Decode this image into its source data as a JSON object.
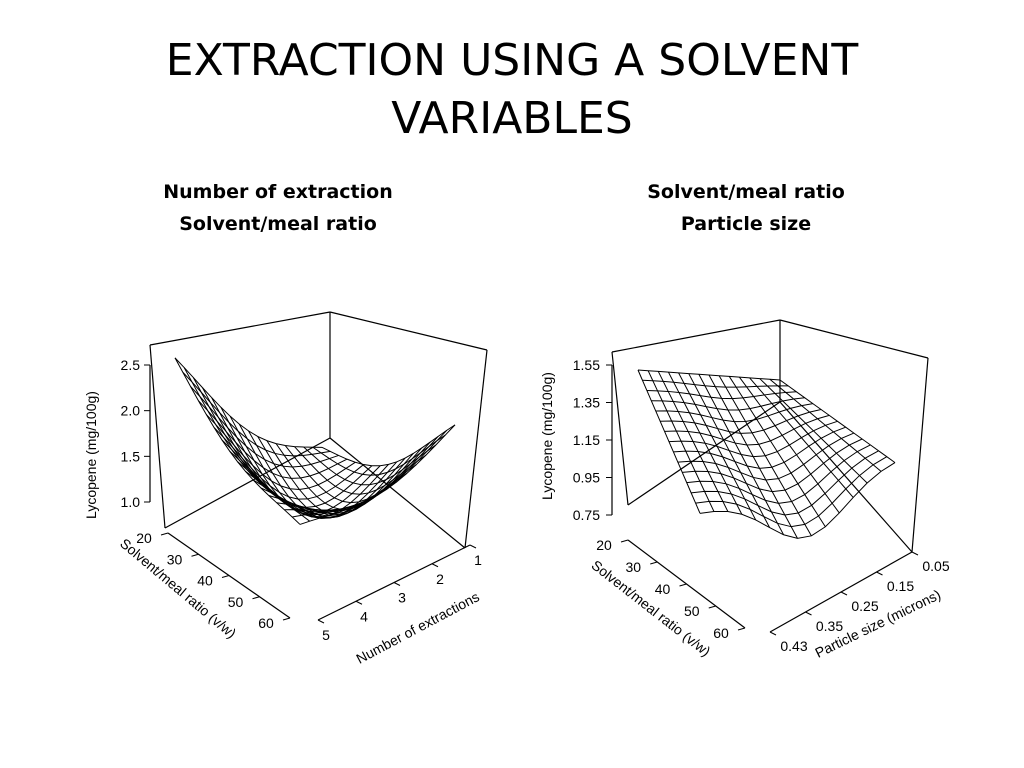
{
  "title": [
    "EXTRACTION USING A SOLVENT",
    "VARIABLES"
  ],
  "captions": {
    "left": [
      "Number of extraction",
      "Solvent/meal ratio"
    ],
    "right": [
      "Solvent/meal ratio",
      "Particle size"
    ]
  },
  "chart_data": [
    {
      "type": "surface",
      "zlabel": "Lycopene (mg/100g)",
      "z_ticks": [
        "1.0",
        "1.5",
        "2.0",
        "2.5"
      ],
      "x_axis_label": "Solvent/meal ratio (v/w)",
      "x_ticks": [
        "20",
        "30",
        "40",
        "50",
        "60"
      ],
      "y_axis_label": "Number of extractions",
      "y_ticks": [
        "1",
        "2",
        "3",
        "4",
        "5"
      ],
      "corners": [
        {
          "solvent_meal_ratio": 20,
          "extractions": 5,
          "lycopene": 2.55
        },
        {
          "solvent_meal_ratio": 20,
          "extractions": 1,
          "lycopene": 1.45
        },
        {
          "solvent_meal_ratio": 60,
          "extractions": 1,
          "lycopene": 2.1
        },
        {
          "solvent_meal_ratio": 60,
          "extractions": 5,
          "lycopene": 1.7
        }
      ],
      "minimum": {
        "lycopene": 0.95
      },
      "grid": "mesh"
    },
    {
      "type": "surface",
      "zlabel": "Lycopene (mg/100g)",
      "z_ticks": [
        "0.75",
        "0.95",
        "1.15",
        "1.35",
        "1.55"
      ],
      "x_axis_label": "Solvent/meal ratio (v/w)",
      "x_ticks": [
        "20",
        "30",
        "40",
        "50",
        "60"
      ],
      "y_axis_label": "Particle size (microns)",
      "y_ticks": [
        "0.05",
        "0.15",
        "0.25",
        "0.35",
        "0.43"
      ],
      "corners": [
        {
          "solvent_meal_ratio": 20,
          "particle_size": 0.43,
          "lycopene": 1.5
        },
        {
          "solvent_meal_ratio": 20,
          "particle_size": 0.05,
          "lycopene": 1.43
        },
        {
          "solvent_meal_ratio": 60,
          "particle_size": 0.05,
          "lycopene": 1.08
        },
        {
          "solvent_meal_ratio": 60,
          "particle_size": 0.43,
          "lycopene": 0.76
        }
      ],
      "grid": "mesh"
    }
  ]
}
